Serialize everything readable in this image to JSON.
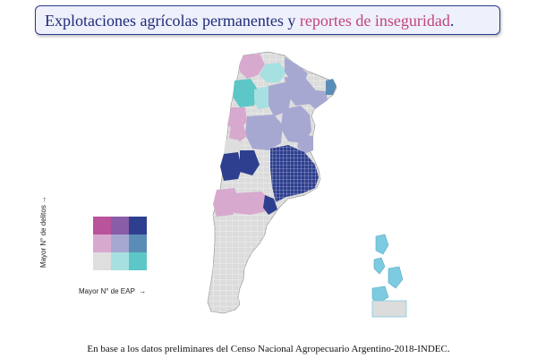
{
  "title": {
    "part1": "Explotaciones agrícolas permanentes y ",
    "part2": "reportes de inseguridad",
    "part3": "."
  },
  "legend": {
    "y_label": "Mayor N° de delitos",
    "y_arrow": "→",
    "x_label": "Mayor N° de EAP",
    "x_arrow": "→",
    "colors": [
      [
        "#b9539b",
        "#8a5da8",
        "#2e3f8f"
      ],
      [
        "#d8a9cf",
        "#a7a8d2",
        "#5a8db6"
      ],
      [
        "#dedede",
        "#a6e0e0",
        "#5cc7c6"
      ]
    ]
  },
  "caption": "En base a los datos preliminares del Censo Nacional Agropecuario Argentino-2018-INDEC.",
  "islands_color": "#7ccbe0"
}
